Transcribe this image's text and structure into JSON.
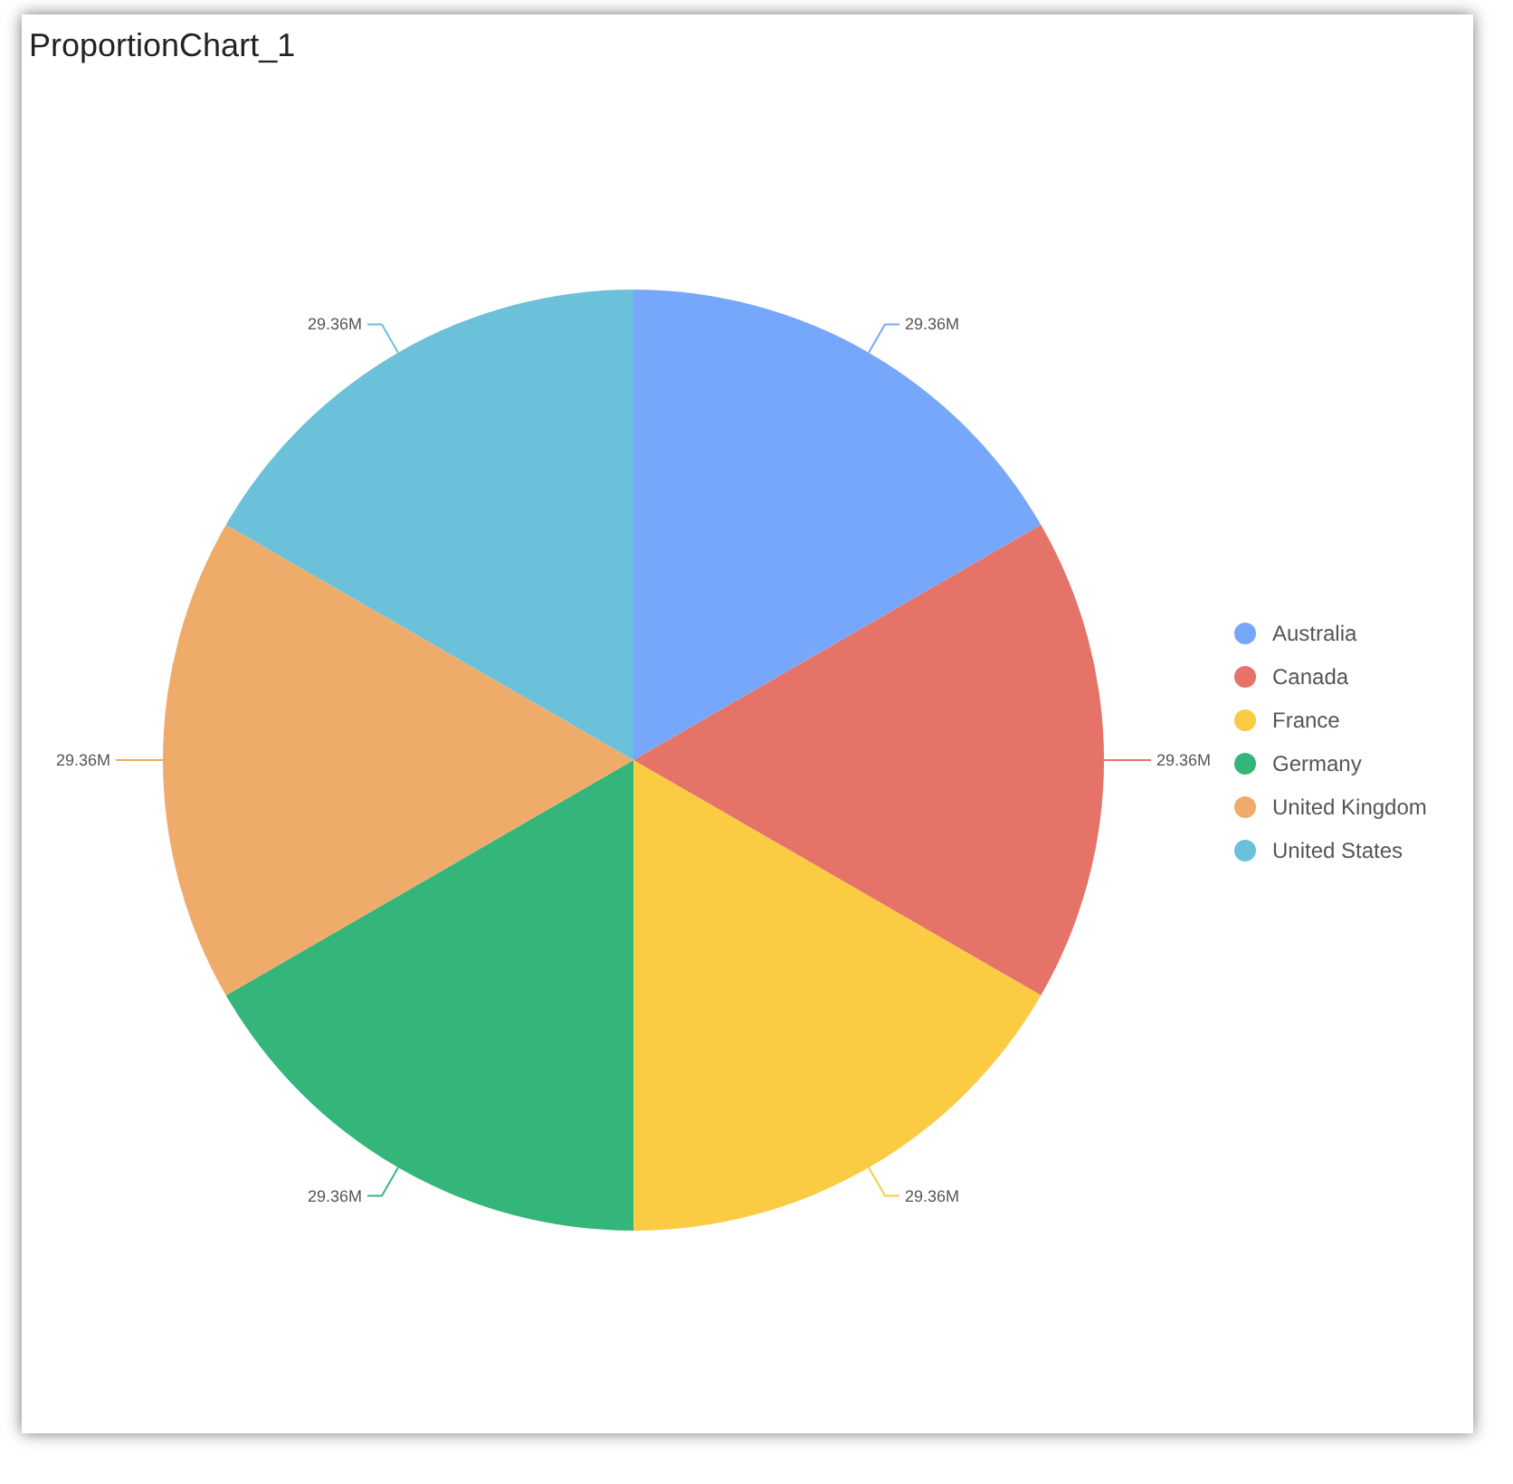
{
  "chart_data": {
    "type": "pie",
    "title": "ProportionChart_1",
    "categories": [
      "Australia",
      "Canada",
      "France",
      "Germany",
      "United Kingdom",
      "United States"
    ],
    "values": [
      29.36,
      29.36,
      29.36,
      29.36,
      29.36,
      29.36
    ],
    "value_labels": [
      "29.36M",
      "29.36M",
      "29.36M",
      "29.36M",
      "29.36M",
      "29.36M"
    ],
    "colors": [
      "#76a7fa",
      "#e57368",
      "#fbcb43",
      "#34b67a",
      "#efab6a",
      "#6bc1d9"
    ],
    "legend": "right"
  }
}
